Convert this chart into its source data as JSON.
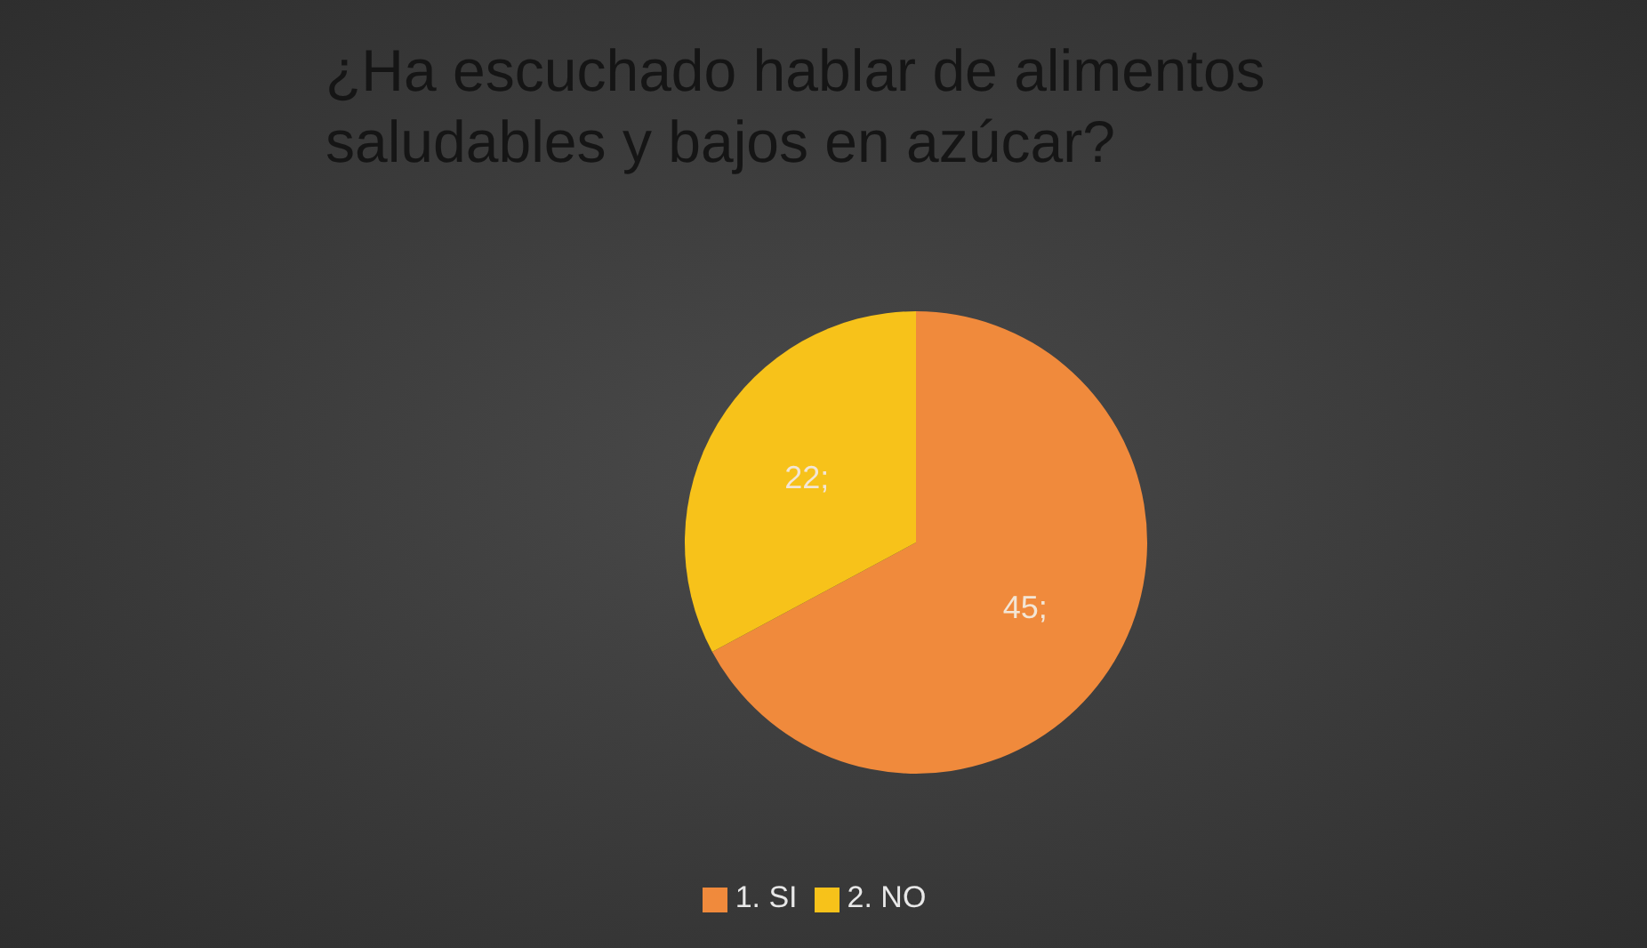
{
  "chart_data": {
    "type": "pie",
    "title": "¿Ha escuchado hablar de alimentos saludables y bajos en azúcar?",
    "categories": [
      "1. SI",
      "2. NO"
    ],
    "values": [
      45,
      22
    ],
    "colors": [
      "#f08a3c",
      "#f7c21a"
    ],
    "value_labels": [
      "45;",
      "22;"
    ],
    "legend": "bottom"
  }
}
